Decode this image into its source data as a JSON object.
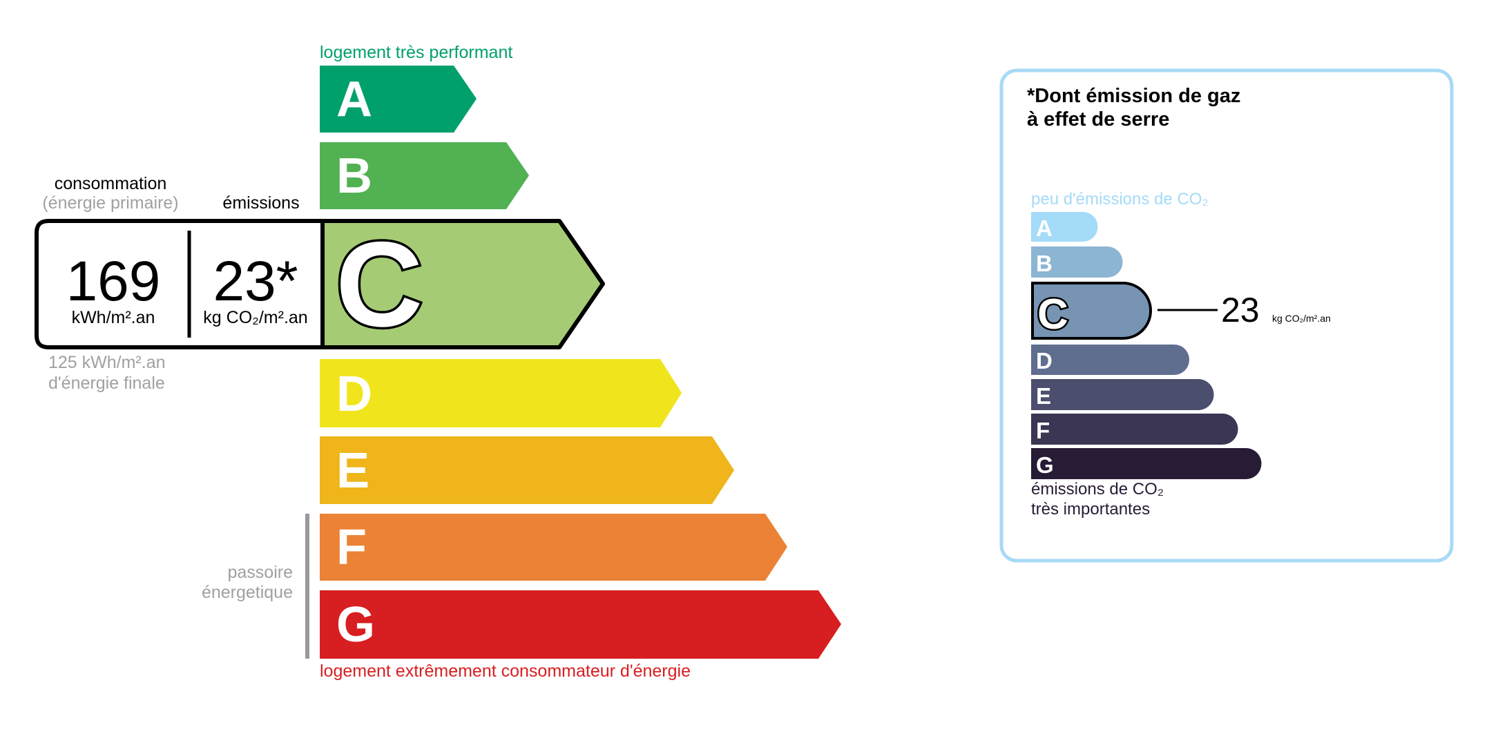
{
  "dpe": {
    "top_label": "logement très performant",
    "bottom_label": "logement extrêmement consommateur d'énergie",
    "passoire_label": [
      "passoire",
      "énergetique"
    ],
    "classes": [
      {
        "letter": "A",
        "color": "#00a06d"
      },
      {
        "letter": "B",
        "color": "#52b153"
      },
      {
        "letter": "C",
        "color": "#a5cc74"
      },
      {
        "letter": "D",
        "color": "#f0e51c"
      },
      {
        "letter": "E",
        "color": "#efb51a"
      },
      {
        "letter": "F",
        "color": "#eb8235"
      },
      {
        "letter": "G",
        "color": "#d71e20"
      }
    ],
    "current_class": "C",
    "consumption_label": "consommation",
    "consumption_sublabel": "(énergie primaire)",
    "emissions_label": "émissions",
    "consumption_value": "169",
    "consumption_unit": "kWh/m².an",
    "emissions_value": "23*",
    "emissions_unit": "kg CO₂/m².an",
    "final_energy_value": "125 kWh/m².an",
    "final_energy_label": "d'énergie finale",
    "top_color": "#00a06d",
    "bottom_color": "#d71e20"
  },
  "ges": {
    "title_line1": "*Dont émission de gaz",
    "title_line2": "à effet de serre",
    "top_label": "peu d'émissions de CO₂",
    "bottom_label_line1": "émissions de CO₂",
    "bottom_label_line2": "très importantes",
    "classes": [
      {
        "letter": "A",
        "color": "#a4dbf8"
      },
      {
        "letter": "B",
        "color": "#8cb4d3"
      },
      {
        "letter": "C",
        "color": "#7794b3"
      },
      {
        "letter": "D",
        "color": "#5f6d8f"
      },
      {
        "letter": "E",
        "color": "#4b4e6d"
      },
      {
        "letter": "F",
        "color": "#3a3653"
      },
      {
        "letter": "G",
        "color": "#281b35"
      }
    ],
    "current_class": "C",
    "value": "23",
    "unit": "kg CO₂/m².an",
    "border_color": "#a8daf5"
  }
}
